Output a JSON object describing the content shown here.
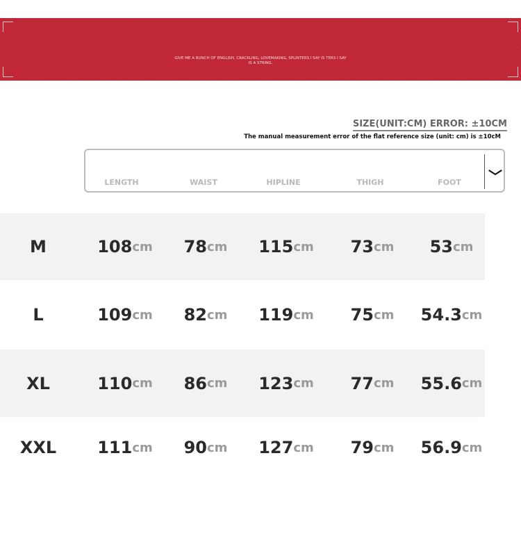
{
  "banner": {
    "text": "GIVE ME A BUNCH OF ENGLISH, CRACKLING, LOVEMAKING, SPLINTERS I SAY IS TERS I SAY IS A STRING.",
    "color": "#c32a39"
  },
  "title": "SIZE(UNIT:CM) ERROR: ±10CM",
  "note": "The manual measurement error of the flat reference size (unit: cm) is ±10cM",
  "columns": [
    "LENGTH",
    "WAIST",
    "HIPLINE",
    "THIGH",
    "FOOT"
  ],
  "unit": "cm",
  "rows": [
    {
      "size": "M",
      "values": [
        "108",
        "78",
        "115",
        "73",
        "53"
      ]
    },
    {
      "size": "L",
      "values": [
        "109",
        "82",
        "119",
        "75",
        "54.3"
      ]
    },
    {
      "size": "XL",
      "values": [
        "110",
        "86",
        "123",
        "77",
        "55.6"
      ]
    },
    {
      "size": "XXL",
      "values": [
        "111",
        "90",
        "127",
        "79",
        "56.9"
      ]
    }
  ]
}
